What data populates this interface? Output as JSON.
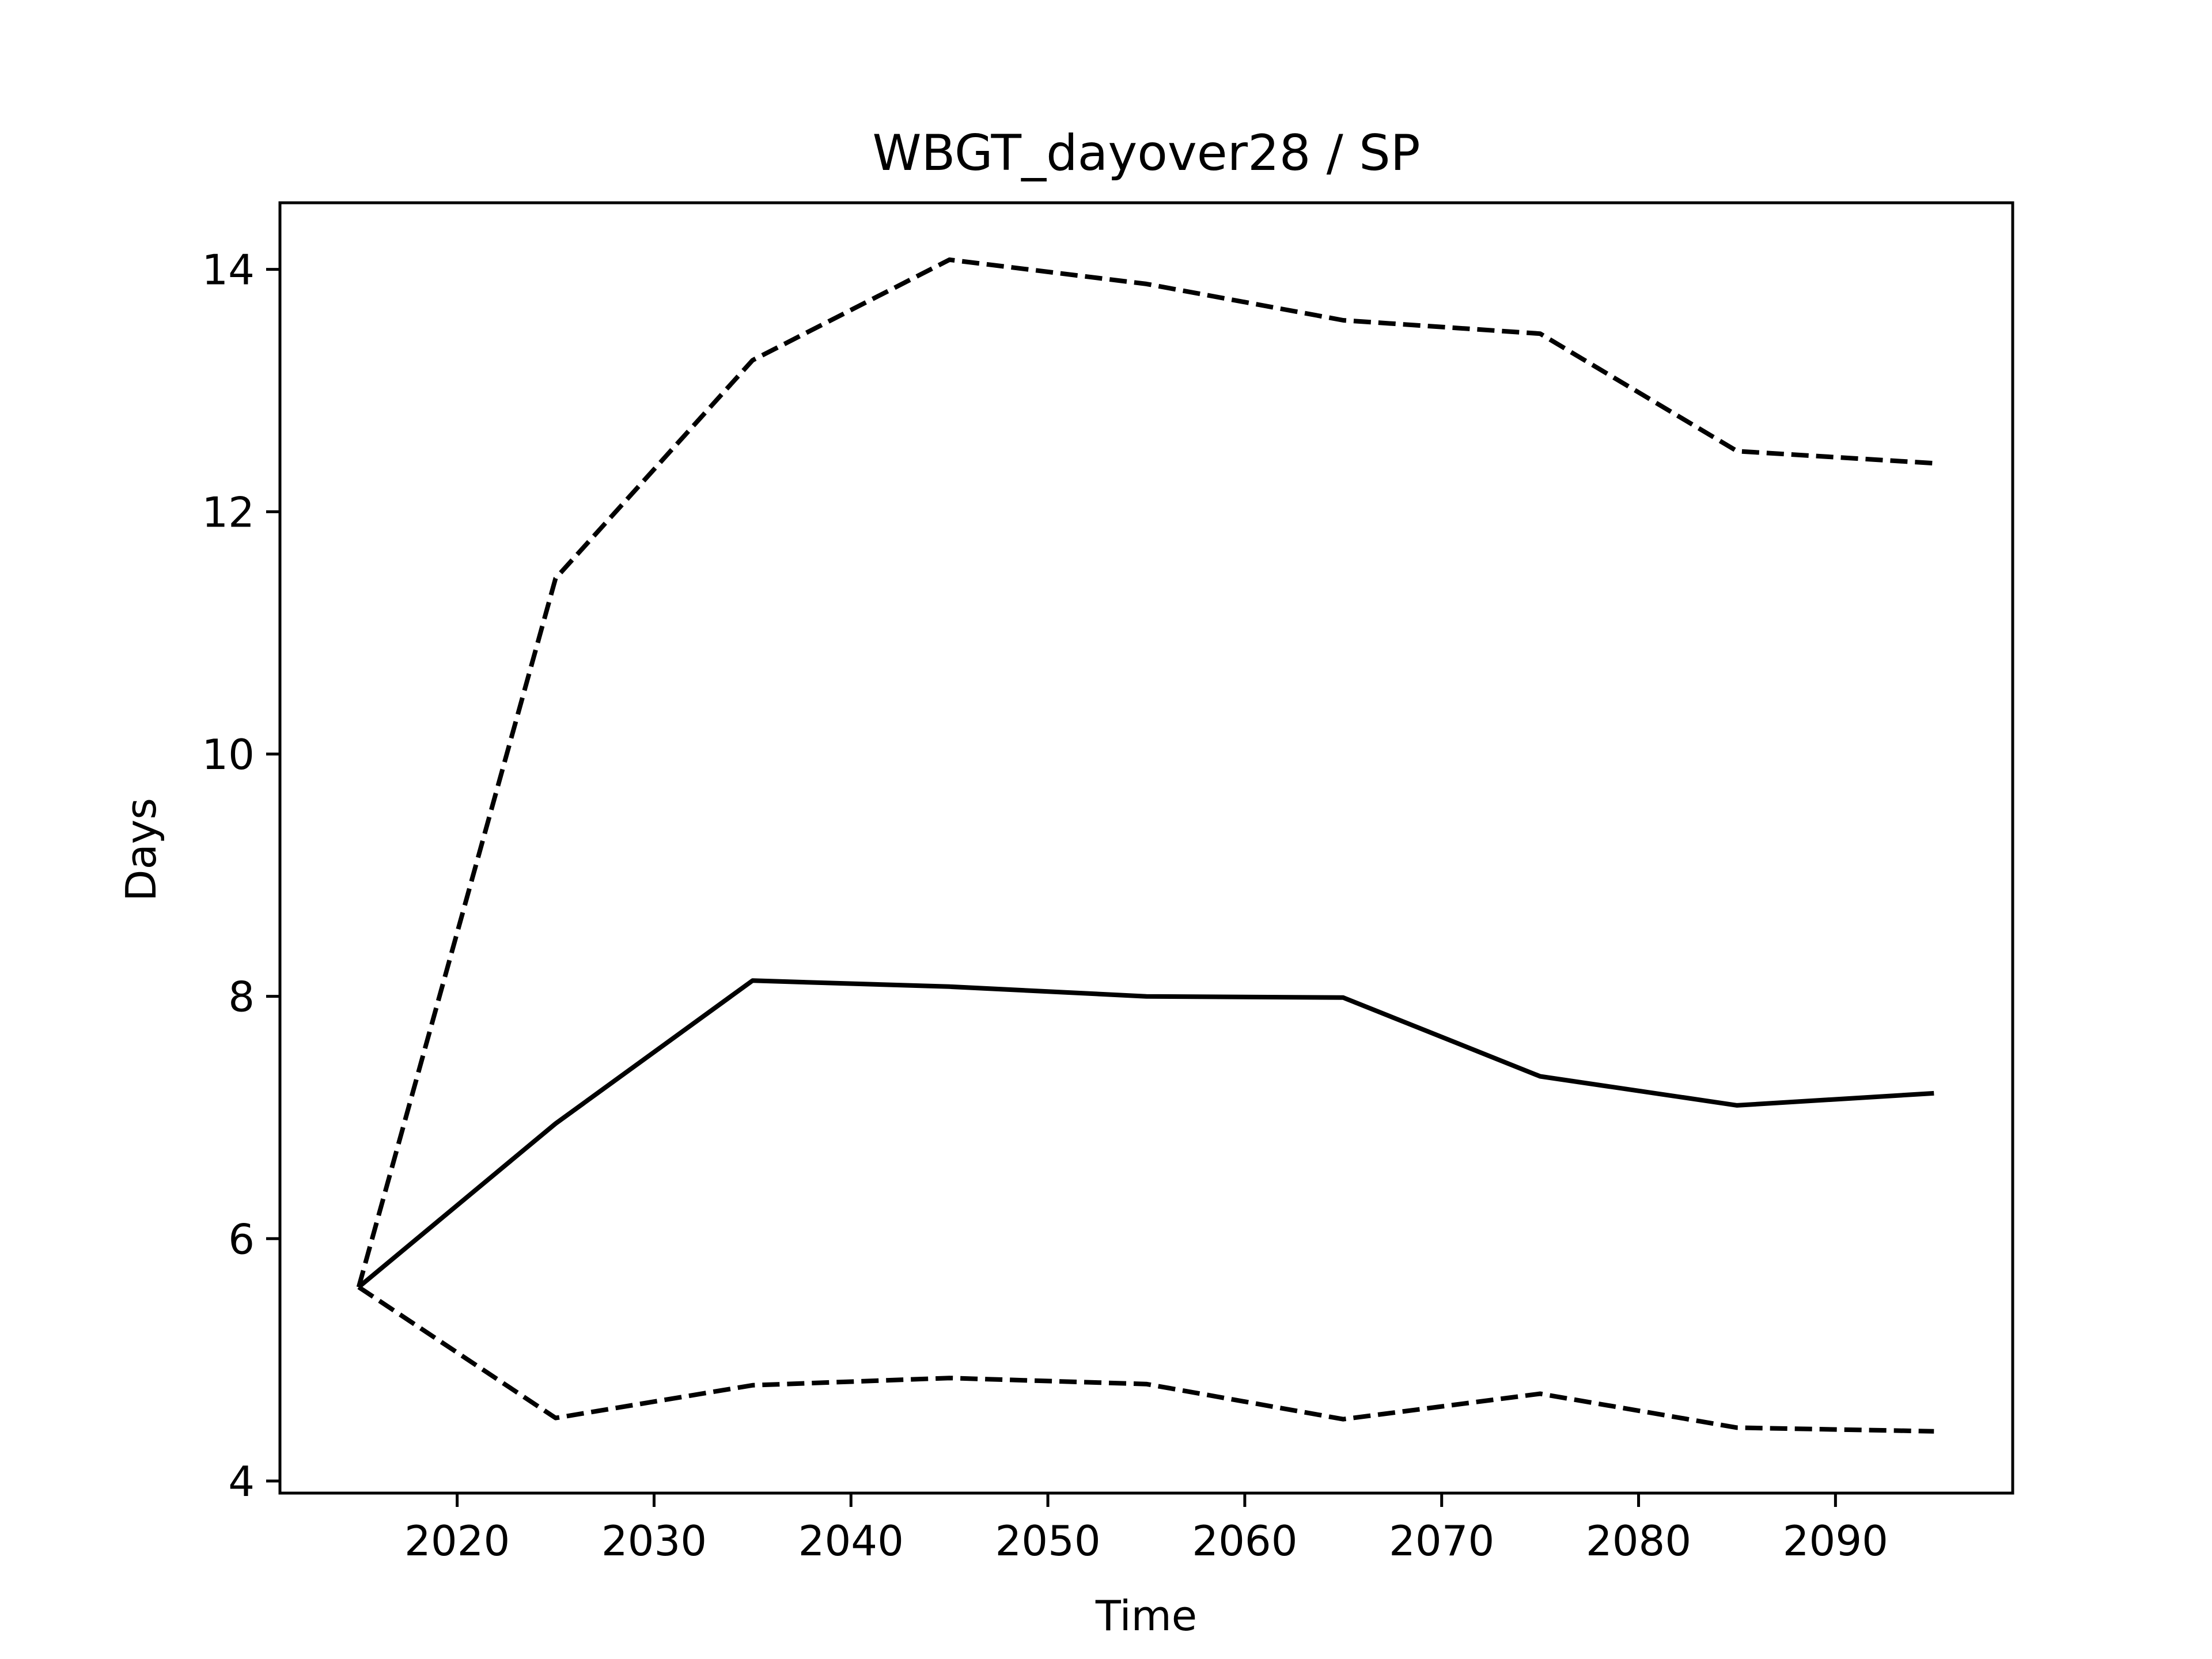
{
  "chart_data": {
    "type": "line",
    "title": "WBGT_dayover28 / SP",
    "xlabel": "Time",
    "ylabel": "Days",
    "xlim": [
      2011,
      2099
    ],
    "ylim": [
      3.9,
      14.55
    ],
    "xticks": [
      2020,
      2030,
      2040,
      2050,
      2060,
      2070,
      2080,
      2090
    ],
    "yticks": [
      4,
      6,
      8,
      10,
      12,
      14
    ],
    "grid": false,
    "legend": "none",
    "x": [
      2015,
      2025,
      2035,
      2045,
      2055,
      2065,
      2075,
      2085,
      2095
    ],
    "series": [
      {
        "style": "solid",
        "color": "#000000",
        "values": [
          5.6,
          6.95,
          8.13,
          8.08,
          8.0,
          7.99,
          7.34,
          7.1,
          7.2
        ]
      },
      {
        "style": "dashed",
        "color": "#000000",
        "values": [
          5.6,
          11.45,
          13.25,
          14.08,
          13.88,
          13.58,
          13.47,
          12.5,
          12.4
        ]
      },
      {
        "style": "dashed",
        "color": "#000000",
        "values": [
          5.6,
          4.52,
          4.79,
          4.85,
          4.8,
          4.51,
          4.72,
          4.44,
          4.41
        ]
      }
    ]
  }
}
